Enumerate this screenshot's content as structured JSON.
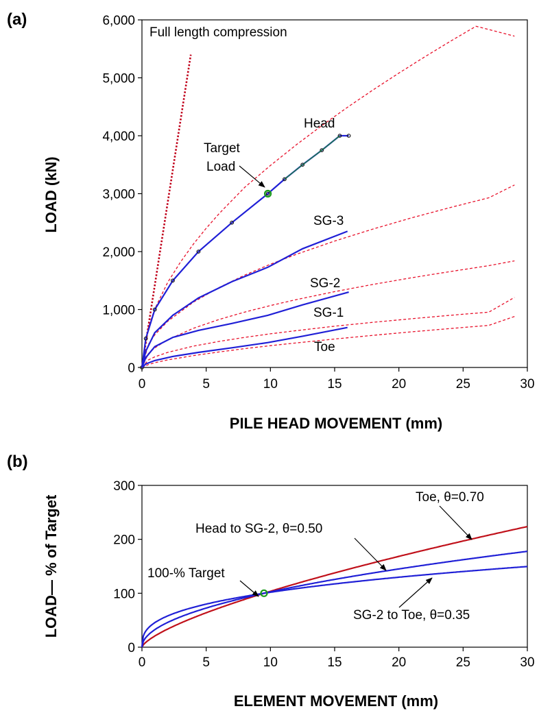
{
  "figure": {
    "panel_a_label": "(a)",
    "panel_b_label": "(b)"
  },
  "chart_data": [
    {
      "type": "line",
      "panel": "(a)",
      "xlabel": "PILE  HEAD  MOVEMENT  (mm)",
      "ylabel": "LOAD  (kN)",
      "xlim": [
        0,
        30
      ],
      "ylim": [
        0,
        6000
      ],
      "xticks": [
        0,
        5,
        10,
        15,
        20,
        25,
        30
      ],
      "xtick_labels": [
        "0",
        "5",
        "10",
        "15",
        "20",
        "25",
        "30"
      ],
      "yticks": [
        0,
        1000,
        2000,
        3000,
        4000,
        5000,
        6000
      ],
      "ytick_labels": [
        "0",
        "1,000",
        "2,000",
        "3,000",
        "4,000",
        "5,000",
        "6,000"
      ],
      "grid": false,
      "colors": {
        "measured": "#1f1fd6",
        "fit": "#e8102a",
        "elastic": "#c0001a",
        "marker": "#1a1a1a",
        "target": "#1a9a1a"
      },
      "series": [
        {
          "name": "Head",
          "style": "measured",
          "markers": true,
          "x": [
            0,
            0.3,
            1.0,
            2.4,
            4.4,
            7.0,
            9.8,
            11.1,
            12.5,
            14.0,
            15.4,
            16.1
          ],
          "y": [
            0,
            500,
            1000,
            1500,
            2000,
            2500,
            3000,
            3250,
            3500,
            3750,
            4000,
            4000
          ]
        },
        {
          "name": "SG-3",
          "style": "measured",
          "x": [
            0,
            0.3,
            1.0,
            2.4,
            4.4,
            7.0,
            9.8,
            12.5,
            16.0
          ],
          "y": [
            0,
            280,
            600,
            900,
            1200,
            1480,
            1730,
            2050,
            2350
          ]
        },
        {
          "name": "SG-2",
          "style": "measured",
          "x": [
            0,
            0.3,
            1.0,
            2.4,
            4.4,
            7.0,
            9.8,
            12.5,
            16.1
          ],
          "y": [
            0,
            170,
            360,
            520,
            640,
            760,
            900,
            1080,
            1300
          ]
        },
        {
          "name": "SG-1",
          "style": "measured",
          "x": [
            0,
            0.3,
            1.0,
            2.4,
            4.4,
            7.0,
            9.8,
            12.5,
            16.0
          ],
          "y": [
            0,
            60,
            120,
            190,
            260,
            340,
            430,
            540,
            690
          ]
        },
        {
          "name": "Head fit",
          "style": "fit",
          "x": [
            0,
            0.5,
            1,
            2,
            3,
            4,
            5,
            6,
            8,
            10,
            12,
            14,
            16,
            18,
            20,
            22,
            24,
            26,
            29
          ],
          "y": [
            0,
            697,
            1011,
            1467,
            1820,
            2128,
            2403,
            2654,
            3110,
            3486,
            3841,
            4175,
            4491,
            4793,
            5082,
            5360,
            5630,
            5890,
            5720
          ]
        },
        {
          "name": "SG-3 fit",
          "style": "fit",
          "x": [
            0,
            0.5,
            1,
            2,
            4,
            6,
            8,
            10,
            12,
            15,
            18,
            21,
            24,
            27,
            29
          ],
          "y": [
            0,
            398,
            563,
            797,
            1127,
            1380,
            1594,
            1782,
            1952,
            2182,
            2391,
            2583,
            2761,
            2929,
            3150
          ]
        },
        {
          "name": "SG-2 fit",
          "style": "fit",
          "x": [
            0,
            0.5,
            1,
            2,
            4,
            6,
            8,
            10,
            12,
            15,
            18,
            21,
            24,
            27,
            29
          ],
          "y": [
            0,
            239,
            338,
            478,
            676,
            828,
            956,
            1069,
            1171,
            1309,
            1434,
            1549,
            1656,
            1757,
            1840
          ]
        },
        {
          "name": "SG-1 fit",
          "style": "fit",
          "x": [
            0,
            0.5,
            1,
            2,
            4,
            6,
            8,
            10,
            12,
            15,
            18,
            21,
            24,
            27,
            29
          ],
          "y": [
            0,
            130,
            184,
            260,
            368,
            450,
            520,
            581,
            636,
            712,
            780,
            842,
            900,
            955,
            1210
          ]
        },
        {
          "name": "Toe fit",
          "style": "fit",
          "x": [
            0,
            0.5,
            1,
            2,
            4,
            6,
            8,
            10,
            12,
            15,
            18,
            21,
            24,
            27,
            29
          ],
          "y": [
            0,
            50,
            82,
            130,
            205,
            268,
            325,
            376,
            424,
            491,
            555,
            615,
            672,
            727,
            880
          ]
        },
        {
          "name": "Full length compression",
          "style": "elastic",
          "x": [
            0,
            3.8
          ],
          "y": [
            0,
            5400
          ]
        }
      ],
      "target_point": {
        "x": 9.8,
        "y": 3000
      },
      "labels": [
        "Full length compression",
        "Head",
        "Target",
        "Load",
        "SG-3",
        "SG-2",
        "SG-1",
        "Toe"
      ]
    },
    {
      "type": "line",
      "panel": "(b)",
      "xlabel": "ELEMENT  MOVEMENT  (mm)",
      "ylabel": "LOAD— % of Target",
      "xlim": [
        0,
        30
      ],
      "ylim": [
        0,
        300
      ],
      "xticks": [
        0,
        5,
        10,
        15,
        20,
        25,
        30
      ],
      "xtick_labels": [
        "0",
        "5",
        "10",
        "15",
        "20",
        "25",
        "30"
      ],
      "yticks": [
        0,
        100,
        200,
        300
      ],
      "ytick_labels": [
        "0",
        "100",
        "200",
        "300"
      ],
      "grid": false,
      "colors": {
        "toe": "#c0101a",
        "blue": "#1f1fd6",
        "target": "#1a9a1a"
      },
      "series": [
        {
          "name": "Toe, θ=0.70",
          "theta": 0.7,
          "ref_x": 9.5,
          "color_key": "toe"
        },
        {
          "name": "Head to SG-2, θ=0.50",
          "theta": 0.5,
          "ref_x": 9.5,
          "color_key": "blue"
        },
        {
          "name": "SG-2 to Toe, θ=0.35",
          "theta": 0.35,
          "ref_x": 9.5,
          "color_key": "blue"
        }
      ],
      "target_point": {
        "x": 9.5,
        "y": 100
      },
      "labels": [
        "Toe, θ=0.70",
        "Head to SG-2, θ=0.50",
        "100-% Target",
        "SG-2 to Toe, θ=0.35"
      ]
    }
  ]
}
